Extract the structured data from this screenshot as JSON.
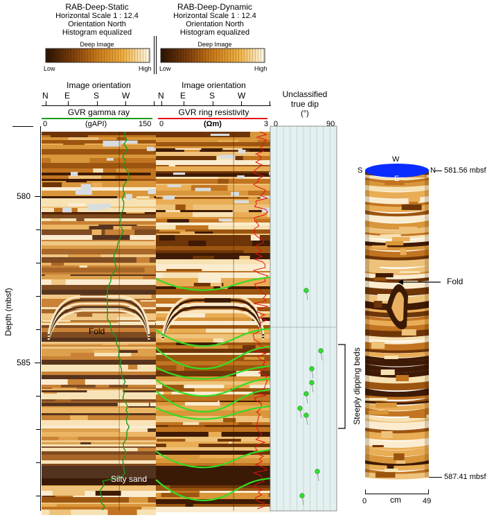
{
  "static_panel": {
    "title": "RAB-Deep-Static",
    "scale": "Horizontal Scale 1 : 12.4",
    "orientation": "Orientation North",
    "histogram": "Histogram equalized",
    "bar_label": "Deep Image",
    "low": "Low",
    "high": "High"
  },
  "dynamic_panel": {
    "title": "RAB-Deep-Dynamic",
    "scale": "Horizontal Scale 1 : 12.4",
    "orientation": "Orientation North",
    "histogram": "Histogram equalized",
    "bar_label": "Deep Image",
    "low": "Low",
    "high": "High"
  },
  "track1": {
    "orientation_title": "Image orientation",
    "directions": [
      "N",
      "E",
      "S",
      "W"
    ],
    "curve_title": "GVR gamma ray",
    "min": "0",
    "unit": "(gAPI)",
    "max": "150",
    "curve_color": "#1a9a1a"
  },
  "track2": {
    "orientation_title": "Image orientation",
    "directions": [
      "N",
      "E",
      "S",
      "W"
    ],
    "curve_title": "GVR ring resistivity",
    "min": "0",
    "unit": "(Ωm)",
    "max": "3",
    "curve_color": "#e01010"
  },
  "track3": {
    "title_line1": "Unclassified",
    "title_line2": "true dip",
    "unit": "(°)",
    "min": "0",
    "max": "90"
  },
  "depth_axis": {
    "label": "Depth (mbsf)",
    "ticks": [
      "580",
      "585"
    ]
  },
  "annotations": {
    "fold": "Fold",
    "silty_sand": "Silty sand",
    "steeply_dipping": "Steeply dipping beds",
    "fold_3d": "Fold"
  },
  "cylinder": {
    "dir_w": "W",
    "dir_s": "S",
    "dir_n": "N",
    "dir_e": "E",
    "top_depth": "581.56 mbsf",
    "bottom_depth": "587.41 mbsf",
    "scale_min": "0",
    "scale_unit": "cm",
    "scale_max": "49",
    "top_color": "#0a2cff"
  },
  "colors": {
    "image_light": "#f3d9a8",
    "image_mid": "#d08a2a",
    "image_dark": "#3a1a05",
    "dip_bg": "#e4f0ef",
    "sine": "#33dd22",
    "dip_marker": "#33dd33"
  }
}
